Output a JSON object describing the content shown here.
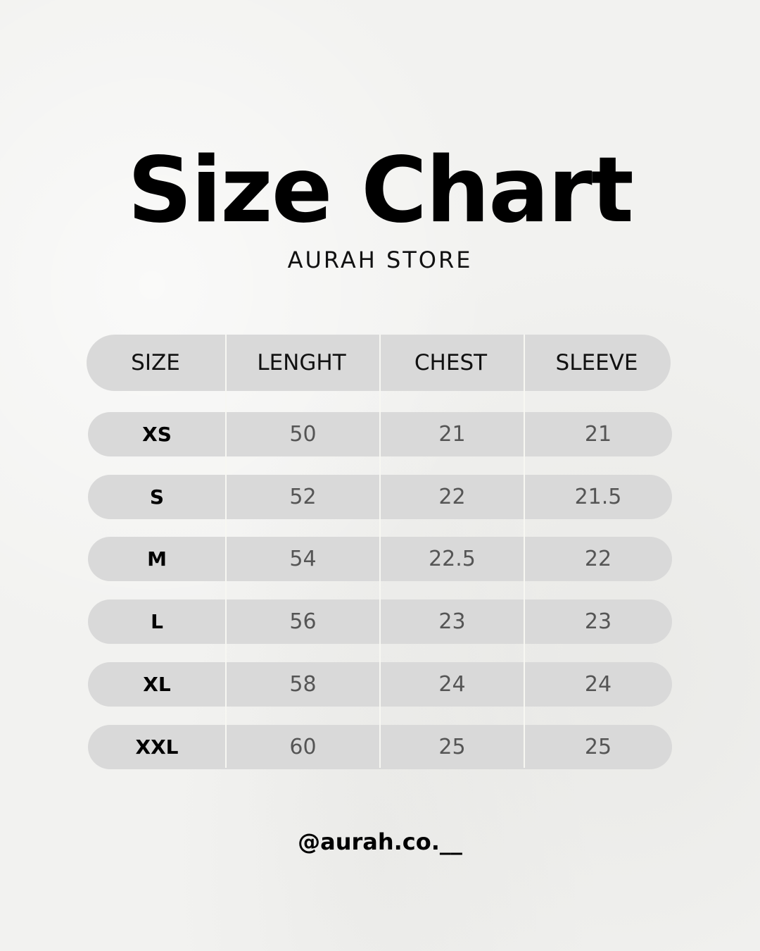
{
  "title": "Size Chart",
  "subtitle": "AURAH STORE",
  "table": {
    "headers": [
      "SIZE",
      "LENGHT",
      "CHEST",
      "SLEEVE"
    ],
    "rows": [
      [
        "XS",
        "50",
        "21",
        "21"
      ],
      [
        "S",
        "52",
        "22",
        "21.5"
      ],
      [
        "M",
        "54",
        "22.5",
        "22"
      ],
      [
        "L",
        "56",
        "23",
        "23"
      ],
      [
        "XL",
        "58",
        "24",
        "24"
      ],
      [
        "XXL",
        "60",
        "25",
        "25"
      ]
    ]
  },
  "handle": "@aurah.co.__",
  "colors": {
    "background": "#f2f2f0",
    "row_fill": "#d9d9d9",
    "value_text": "#555555"
  }
}
